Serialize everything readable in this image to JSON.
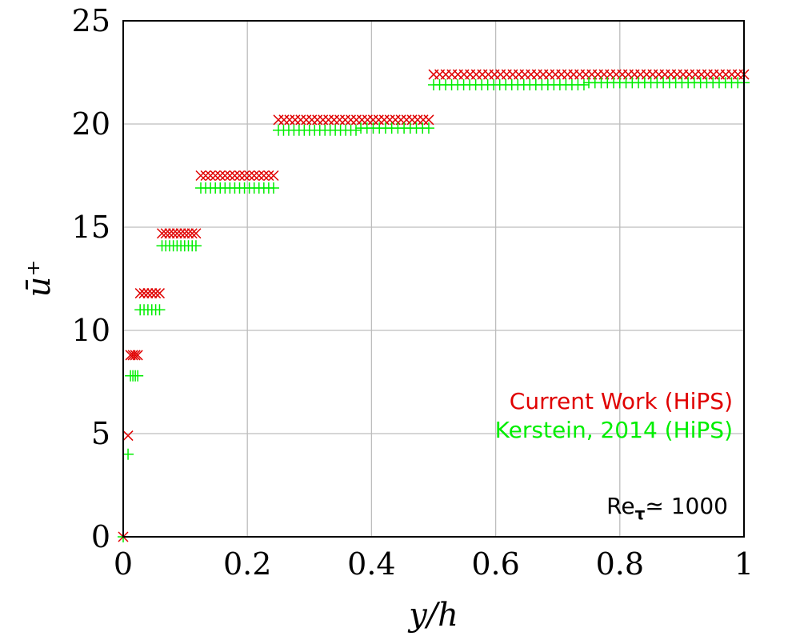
{
  "chart_data": {
    "type": "scatter",
    "title": "",
    "xlabel": "y/h",
    "ylabel": "ū⁺",
    "xlim": [
      0,
      1
    ],
    "ylim": [
      0,
      25
    ],
    "grid": true,
    "xticks": [
      0,
      0.2,
      0.4,
      0.6,
      0.8,
      1
    ],
    "xtick_labels": [
      "0",
      "0.2",
      "0.4",
      "0.6",
      "0.8",
      "1"
    ],
    "yticks": [
      0,
      5,
      10,
      15,
      20,
      25
    ],
    "ytick_labels": [
      "0",
      "5",
      "10",
      "15",
      "20",
      "25"
    ],
    "legend_position": "lower-right",
    "annotation": {
      "text_main": "Re",
      "text_sub": "τ",
      "text_rest": "≃ 1000"
    },
    "series": [
      {
        "name": "Current Work (HiPS)",
        "marker": "x",
        "color": "#e00000",
        "levels": [
          {
            "x_start": 0.0,
            "x_end": 0.0,
            "y": 0.0,
            "count": 1
          },
          {
            "x_start": 0.0078,
            "x_end": 0.0078,
            "y": 4.9,
            "count": 1
          },
          {
            "x_start": 0.0117,
            "x_end": 0.0234,
            "y": 8.8,
            "count": 4
          },
          {
            "x_start": 0.0273,
            "x_end": 0.0586,
            "y": 11.8,
            "count": 6
          },
          {
            "x_start": 0.0625,
            "x_end": 0.1172,
            "y": 14.7,
            "count": 10
          },
          {
            "x_start": 0.125,
            "x_end": 0.2422,
            "y": 17.5,
            "count": 16
          },
          {
            "x_start": 0.25,
            "x_end": 0.4922,
            "y": 20.2,
            "count": 28
          },
          {
            "x_start": 0.5,
            "x_end": 1.0,
            "y": 22.4,
            "count": 52
          }
        ]
      },
      {
        "name": "Kerstein, 2014 (HiPS)",
        "marker": "+",
        "color": "#00ee00",
        "levels": [
          {
            "x_start": 0.0,
            "x_end": 0.0,
            "y": 0.0,
            "count": 1
          },
          {
            "x_start": 0.0078,
            "x_end": 0.0078,
            "y": 4.0,
            "count": 1
          },
          {
            "x_start": 0.0117,
            "x_end": 0.0234,
            "y": 7.8,
            "count": 4
          },
          {
            "x_start": 0.0273,
            "x_end": 0.0586,
            "y": 11.0,
            "count": 6
          },
          {
            "x_start": 0.0625,
            "x_end": 0.1172,
            "y": 14.1,
            "count": 10
          },
          {
            "x_start": 0.125,
            "x_end": 0.2422,
            "y": 16.9,
            "count": 16
          },
          {
            "x_start": 0.25,
            "x_end": 0.375,
            "y": 19.7,
            "count": 16
          },
          {
            "x_start": 0.3828,
            "x_end": 0.4922,
            "y": 19.8,
            "count": 12
          },
          {
            "x_start": 0.5,
            "x_end": 0.7422,
            "y": 21.9,
            "count": 26
          },
          {
            "x_start": 0.75,
            "x_end": 1.0,
            "y": 22.0,
            "count": 26
          }
        ]
      }
    ]
  }
}
